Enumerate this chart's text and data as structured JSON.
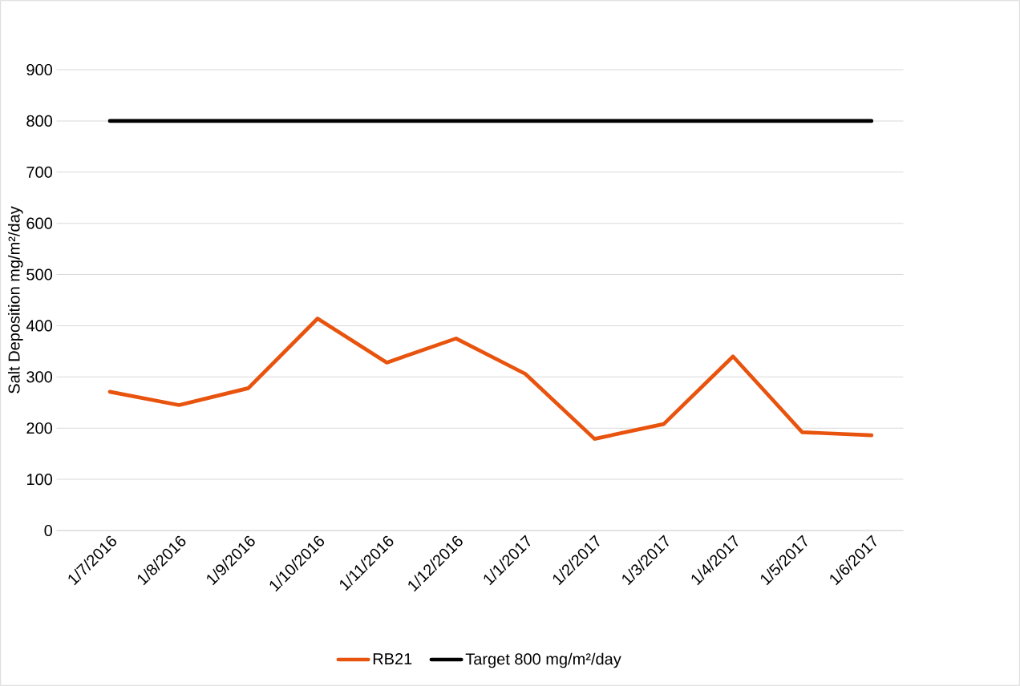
{
  "chart_data": {
    "type": "line",
    "ylabel": "Salt Deposition mg/m²/day",
    "categories": [
      "1/7/2016",
      "1/8/2016",
      "1/9/2016",
      "1/10/2016",
      "1/11/2016",
      "1/12/2016",
      "1/1/2017",
      "1/2/2017",
      "1/3/2017",
      "1/4/2017",
      "1/5/2017",
      "1/6/2017"
    ],
    "series": [
      {
        "name": "RB21",
        "color": "#e8530e",
        "values": [
          271,
          245,
          278,
          414,
          328,
          375,
          306,
          179,
          208,
          340,
          192,
          186
        ]
      },
      {
        "name": "Target 800 mg/m²/day",
        "color": "#000000",
        "values": [
          800,
          800,
          800,
          800,
          800,
          800,
          800,
          800,
          800,
          800,
          800,
          800
        ]
      }
    ],
    "ylim": [
      0,
      900
    ],
    "yticks": [
      0,
      100,
      200,
      300,
      400,
      500,
      600,
      700,
      800,
      900
    ],
    "grid": "y",
    "legend": "bottom"
  }
}
